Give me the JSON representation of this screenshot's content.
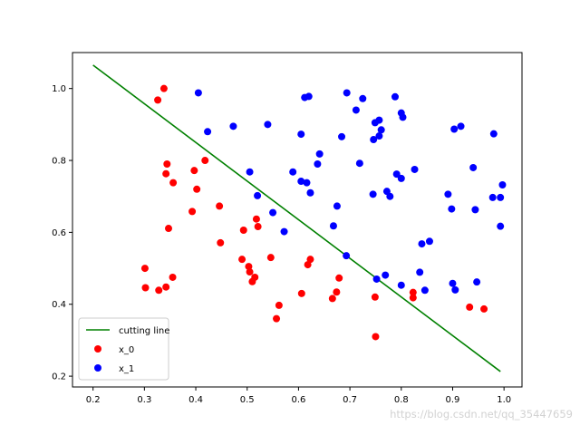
{
  "chart_data": {
    "type": "scatter",
    "xlim": [
      0.16,
      1.035
    ],
    "ylim": [
      0.17,
      1.1
    ],
    "xticks": [
      "0.2",
      "0.3",
      "0.4",
      "0.5",
      "0.6",
      "0.7",
      "0.8",
      "0.9",
      "1.0"
    ],
    "yticks": [
      "0.2",
      "0.4",
      "0.6",
      "0.8",
      "1.0"
    ],
    "grid": false,
    "legend_position": "lower-left",
    "line": {
      "name": "cutting line",
      "color": "#008000",
      "x": [
        0.2,
        0.993
      ],
      "y": [
        1.065,
        0.213
      ]
    },
    "series": [
      {
        "name": "x_0",
        "color": "#ff0000",
        "points": [
          [
            0.338,
            1.0
          ],
          [
            0.326,
            0.968
          ],
          [
            0.344,
            0.79
          ],
          [
            0.342,
            0.763
          ],
          [
            0.356,
            0.738
          ],
          [
            0.397,
            0.772
          ],
          [
            0.418,
            0.8
          ],
          [
            0.402,
            0.72
          ],
          [
            0.393,
            0.658
          ],
          [
            0.446,
            0.673
          ],
          [
            0.347,
            0.611
          ],
          [
            0.448,
            0.571
          ],
          [
            0.518,
            0.637
          ],
          [
            0.521,
            0.616
          ],
          [
            0.493,
            0.606
          ],
          [
            0.301,
            0.5
          ],
          [
            0.355,
            0.475
          ],
          [
            0.302,
            0.446
          ],
          [
            0.328,
            0.439
          ],
          [
            0.342,
            0.448
          ],
          [
            0.49,
            0.525
          ],
          [
            0.503,
            0.505
          ],
          [
            0.505,
            0.49
          ],
          [
            0.515,
            0.475
          ],
          [
            0.51,
            0.463
          ],
          [
            0.546,
            0.53
          ],
          [
            0.623,
            0.525
          ],
          [
            0.618,
            0.51
          ],
          [
            0.562,
            0.397
          ],
          [
            0.557,
            0.36
          ],
          [
            0.606,
            0.43
          ],
          [
            0.679,
            0.473
          ],
          [
            0.674,
            0.434
          ],
          [
            0.666,
            0.416
          ],
          [
            0.749,
            0.42
          ],
          [
            0.75,
            0.31
          ],
          [
            0.823,
            0.433
          ],
          [
            0.823,
            0.418
          ],
          [
            0.933,
            0.392
          ],
          [
            0.961,
            0.387
          ]
        ]
      },
      {
        "name": "x_1",
        "color": "#0000ff",
        "points": [
          [
            0.405,
            0.988
          ],
          [
            0.423,
            0.88
          ],
          [
            0.473,
            0.895
          ],
          [
            0.54,
            0.9
          ],
          [
            0.612,
            0.975
          ],
          [
            0.62,
            0.978
          ],
          [
            0.694,
            0.988
          ],
          [
            0.725,
            0.972
          ],
          [
            0.788,
            0.977
          ],
          [
            0.712,
            0.94
          ],
          [
            0.8,
            0.932
          ],
          [
            0.803,
            0.92
          ],
          [
            0.757,
            0.912
          ],
          [
            0.749,
            0.905
          ],
          [
            0.761,
            0.885
          ],
          [
            0.757,
            0.868
          ],
          [
            0.746,
            0.858
          ],
          [
            0.605,
            0.873
          ],
          [
            0.684,
            0.866
          ],
          [
            0.641,
            0.818
          ],
          [
            0.637,
            0.79
          ],
          [
            0.719,
            0.792
          ],
          [
            0.903,
            0.887
          ],
          [
            0.916,
            0.895
          ],
          [
            0.98,
            0.874
          ],
          [
            0.505,
            0.768
          ],
          [
            0.589,
            0.768
          ],
          [
            0.605,
            0.742
          ],
          [
            0.616,
            0.738
          ],
          [
            0.623,
            0.71
          ],
          [
            0.52,
            0.702
          ],
          [
            0.55,
            0.655
          ],
          [
            0.572,
            0.602
          ],
          [
            0.675,
            0.673
          ],
          [
            0.668,
            0.618
          ],
          [
            0.693,
            0.535
          ],
          [
            0.745,
            0.706
          ],
          [
            0.772,
            0.714
          ],
          [
            0.778,
            0.7
          ],
          [
            0.791,
            0.762
          ],
          [
            0.8,
            0.75
          ],
          [
            0.826,
            0.775
          ],
          [
            0.94,
            0.78
          ],
          [
            0.891,
            0.706
          ],
          [
            0.898,
            0.665
          ],
          [
            0.944,
            0.663
          ],
          [
            0.978,
            0.697
          ],
          [
            0.993,
            0.697
          ],
          [
            0.997,
            0.732
          ],
          [
            0.993,
            0.617
          ],
          [
            0.855,
            0.575
          ],
          [
            0.84,
            0.568
          ],
          [
            0.836,
            0.489
          ],
          [
            0.846,
            0.439
          ],
          [
            0.8,
            0.453
          ],
          [
            0.769,
            0.481
          ],
          [
            0.752,
            0.47
          ],
          [
            0.9,
            0.458
          ],
          [
            0.905,
            0.44
          ],
          [
            0.947,
            0.462
          ]
        ]
      }
    ]
  },
  "watermark": "https://blog.csdn.net/qq_35447659"
}
